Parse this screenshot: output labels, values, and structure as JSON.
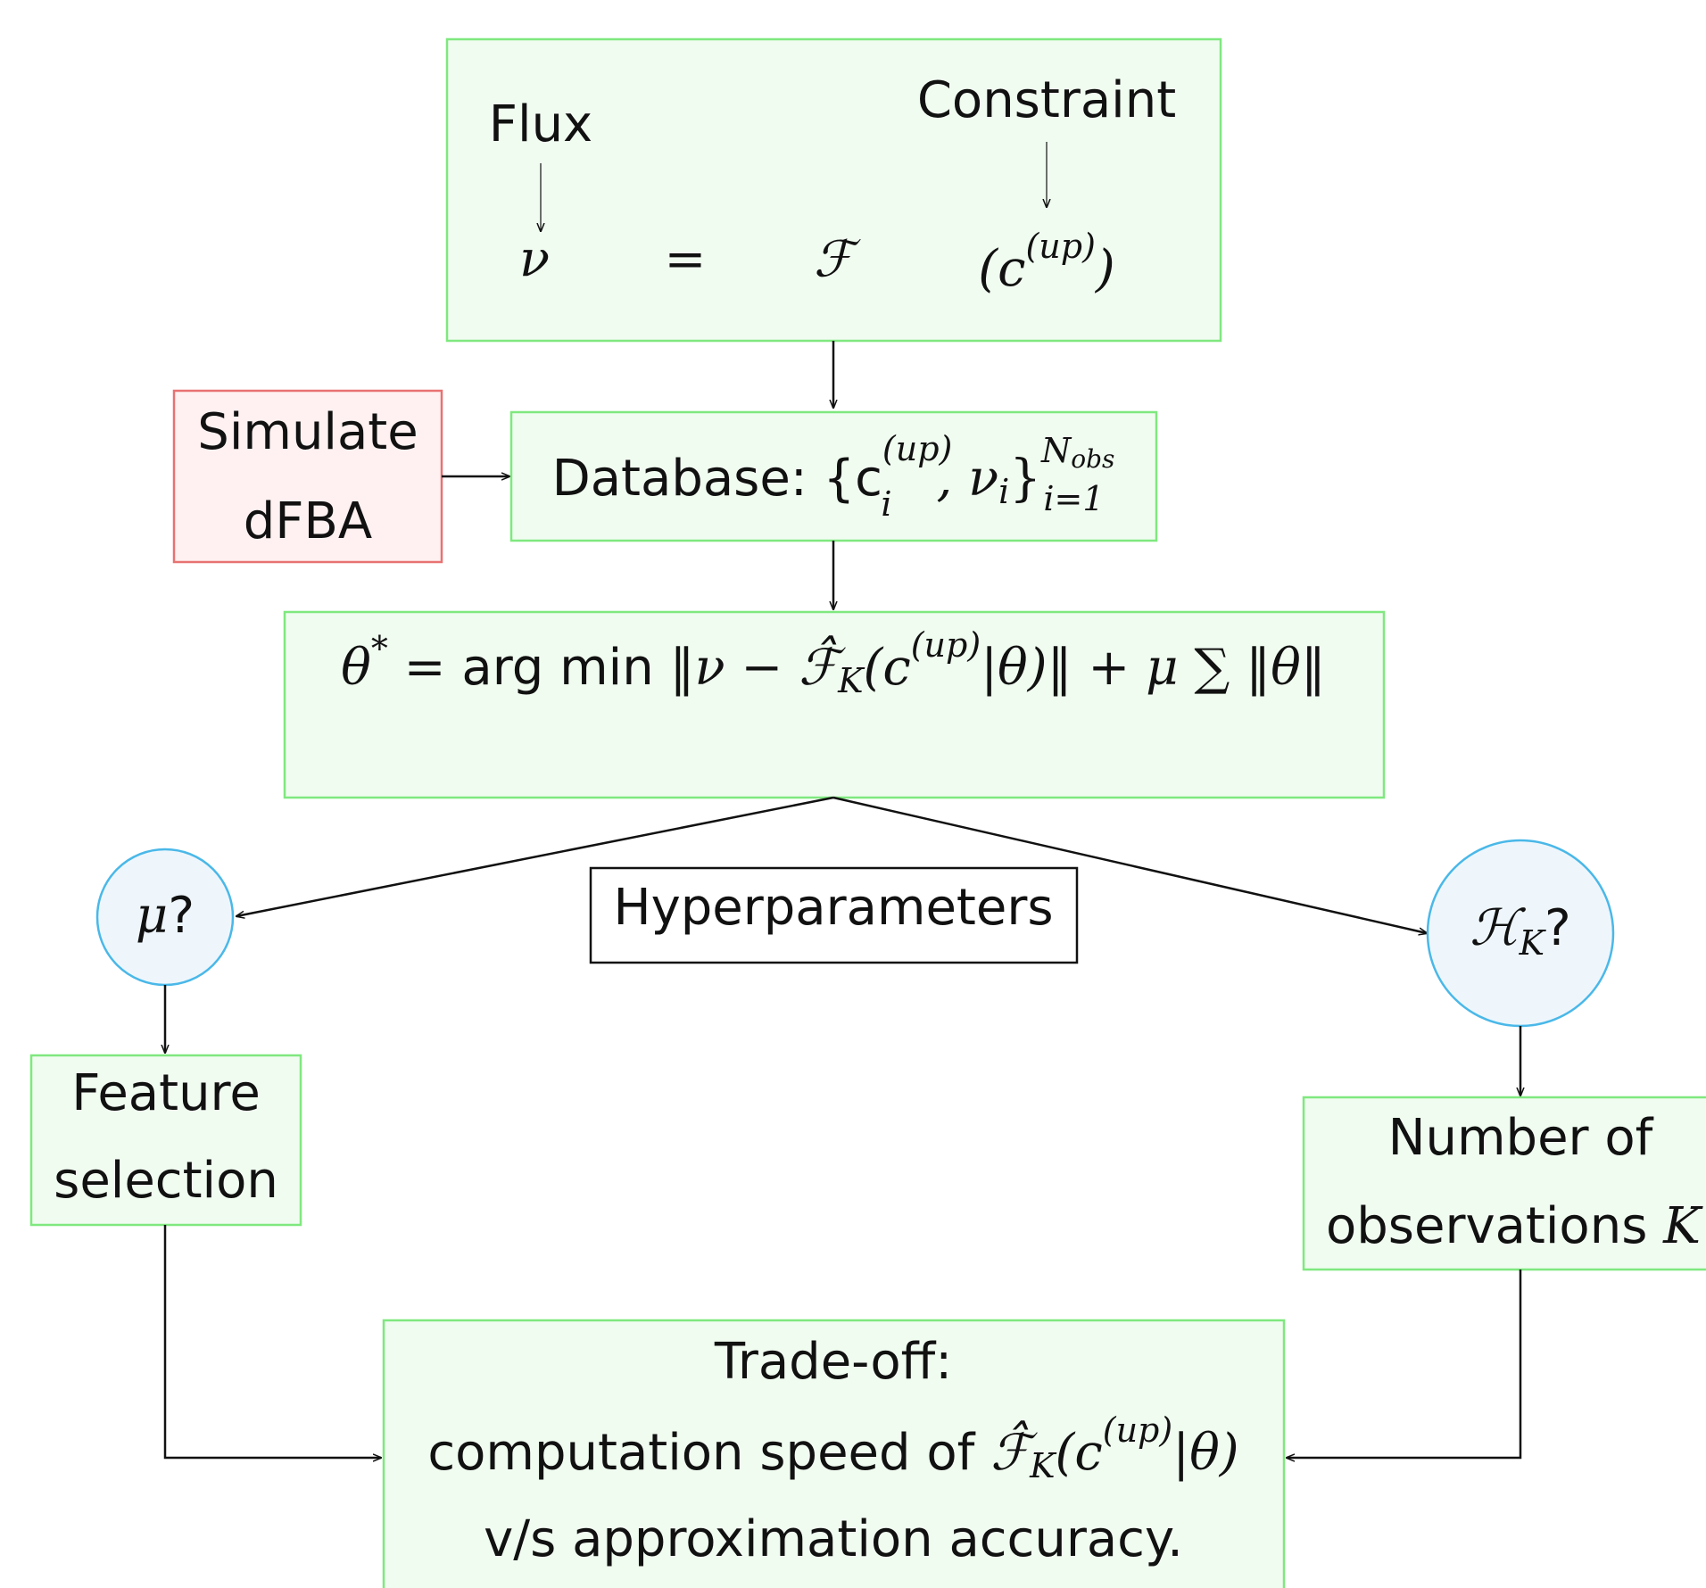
{
  "top_box": {
    "flux": "Flux",
    "constraint": "Constraint",
    "nu": "ν",
    "equals": "=",
    "F": "ℱ",
    "arg": [
      "(c",
      "(up)",
      ")"
    ]
  },
  "simulate": {
    "lines": [
      "Simulate",
      "dFBA"
    ]
  },
  "database": {
    "parts": [
      "Database: {c",
      "(up)",
      "i",
      ", ν",
      "i",
      "}",
      "N",
      "obs",
      "i=1"
    ]
  },
  "objective": {
    "parts": [
      "θ",
      "*",
      " = ",
      "arg min",
      " ‖ν − ",
      "ℱ̂",
      "K",
      "(c",
      "(up)",
      "|θ)‖ + μ ∑ ‖θ‖"
    ]
  },
  "hyperparameters": "Hyperparameters",
  "mu_node": {
    "parts": [
      "μ",
      "?"
    ]
  },
  "hk_node": {
    "parts": [
      "ℋ",
      "K",
      "?"
    ]
  },
  "feature": {
    "lines": [
      "Feature",
      "selection"
    ]
  },
  "number": {
    "lines": [
      "Number of",
      "observations ",
      "K"
    ]
  },
  "tradeoff": {
    "lines": [
      "Trade-off:",
      "computation speed of ",
      "ℱ̂",
      "K",
      "(c",
      "(up)",
      "|θ)",
      "v/s approximation accuracy."
    ]
  }
}
